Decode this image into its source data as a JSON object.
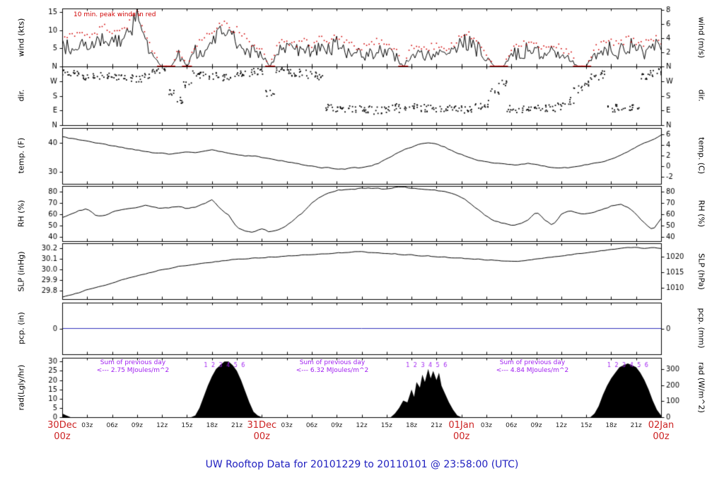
{
  "title": "UW Rooftop Data for 20101229  to  20110101 @ 23:58:00  (UTC)",
  "colors": {
    "series": "#000000",
    "red": "#d00000",
    "blue": "#3333bb",
    "purple": "#a020f0",
    "title_blue": "#2020c0",
    "day_label_red": "#cc2222",
    "hour_label": "#222222"
  },
  "x_axis": {
    "total_hours": 72,
    "tick_step_hours": 3,
    "hour_labels": [
      "03z",
      "06z",
      "09z",
      "12z",
      "15z",
      "18z",
      "21z"
    ],
    "day_labels": [
      {
        "t": 0,
        "line1": "30Dec",
        "line2": "00z"
      },
      {
        "t": 24,
        "line1": "31Dec",
        "line2": "00z"
      },
      {
        "t": 48,
        "line1": "01Jan",
        "line2": "00z"
      },
      {
        "t": 72,
        "line1": "02Jan",
        "line2": "00z"
      }
    ]
  },
  "chart_data": [
    {
      "type": "line",
      "name": "wind",
      "left_label": "wind (kts)",
      "right_label": "wind (m/s)",
      "annotation": "10 min. peak winds in red",
      "ylim": [
        0,
        16
      ],
      "x_start": 0,
      "x_step_hours": 1,
      "left_ticks": {
        "values": [
          5,
          10,
          15
        ],
        "labels": [
          "5",
          "10",
          "15"
        ]
      },
      "right_ticks": {
        "values": [
          3.89,
          7.78,
          11.66,
          15.55
        ],
        "labels": [
          "2",
          "4",
          "6",
          "8"
        ]
      },
      "series": [
        {
          "name": "10 min avg wind (kts)",
          "values": [
            6,
            5,
            7,
            5,
            6,
            8,
            7,
            6,
            9,
            14,
            6,
            2,
            0,
            0,
            3,
            0,
            4,
            5,
            7,
            9,
            8,
            7,
            5,
            4,
            3,
            0,
            4,
            5,
            4,
            5,
            4,
            6,
            5,
            6,
            5,
            4,
            3,
            4,
            5,
            4,
            3,
            0,
            3,
            4,
            3,
            4,
            3,
            4,
            7,
            6,
            5,
            2,
            0,
            0,
            3,
            4,
            5,
            4,
            3,
            4,
            3,
            2,
            0,
            0,
            3,
            4,
            5,
            4,
            6,
            5,
            4,
            6,
            5
          ]
        },
        {
          "name": "10 min peak wind (kts)",
          "values": [
            9,
            8,
            9,
            8,
            9,
            11,
            9,
            9,
            12,
            15,
            9,
            4,
            0,
            0,
            5,
            0,
            6,
            7,
            10,
            12,
            11,
            10,
            8,
            6,
            5,
            0,
            6,
            7,
            6,
            7,
            6,
            8,
            7,
            8,
            7,
            6,
            5,
            6,
            7,
            6,
            5,
            0,
            5,
            6,
            5,
            6,
            5,
            6,
            9,
            9,
            7,
            4,
            0,
            0,
            5,
            6,
            7,
            6,
            5,
            6,
            5,
            4,
            0,
            0,
            5,
            6,
            7,
            6,
            8,
            7,
            6,
            8,
            7
          ]
        }
      ]
    },
    {
      "type": "scatter",
      "name": "wind-direction",
      "left_label": "dir.",
      "right_label": "dir.",
      "ylim": [
        0,
        360
      ],
      "x_start": 0,
      "x_step_hours": 1,
      "left_ticks": {
        "values": [
          0,
          90,
          180,
          270,
          360
        ],
        "labels": [
          "N",
          "E",
          "S",
          "W",
          "N"
        ]
      },
      "right_ticks": {
        "values": [
          0,
          90,
          180,
          270,
          360
        ],
        "labels": [
          "N",
          "E",
          "S",
          "W",
          "N"
        ]
      },
      "series": [
        {
          "name": "wind direction (deg, N top=360)",
          "values": [
            320,
            315,
            310,
            300,
            305,
            310,
            300,
            295,
            290,
            285,
            300,
            320,
            340,
            200,
            150,
            250,
            310,
            305,
            300,
            295,
            300,
            310,
            320,
            330,
            335,
            200,
            330,
            320,
            315,
            320,
            310,
            300,
            110,
            95,
            90,
            100,
            105,
            95,
            90,
            100,
            110,
            95,
            120,
            105,
            100,
            95,
            100,
            105,
            95,
            100,
            110,
            130,
            200,
            260,
            100,
            95,
            105,
            110,
            100,
            105,
            115,
            150,
            220,
            260,
            300,
            310,
            100,
            105,
            110,
            120,
            300,
            320,
            330
          ]
        }
      ]
    },
    {
      "type": "line",
      "name": "temperature",
      "left_label": "temp. (F)",
      "right_label": "temp. (C)",
      "ylim": [
        26,
        45
      ],
      "x_start": 0,
      "x_step_hours": 1,
      "left_ticks": {
        "values": [
          30,
          40
        ],
        "labels": [
          "30",
          "40"
        ]
      },
      "right_ticks": {
        "values": [
          28.4,
          32,
          35.6,
          39.2,
          42.8
        ],
        "labels": [
          "-2",
          "0",
          "2",
          "4",
          "6"
        ]
      },
      "series": [
        {
          "name": "temperature (F)",
          "values": [
            42,
            41.5,
            41,
            40.5,
            40,
            39.5,
            39,
            38.5,
            38,
            37.5,
            37,
            36.5,
            36.5,
            36,
            36.5,
            37,
            36.5,
            37,
            37.5,
            37,
            36.5,
            36,
            35.5,
            35.5,
            35,
            34.5,
            34,
            33.5,
            33,
            32.5,
            32,
            31.5,
            31.5,
            31,
            31,
            31.5,
            31.5,
            32,
            33,
            34.5,
            36,
            37.5,
            38.5,
            39.5,
            40,
            39.5,
            38.5,
            37,
            36,
            35,
            34,
            33.5,
            33,
            33,
            32.5,
            32.5,
            33,
            32.5,
            32,
            31.5,
            31.5,
            31.5,
            32,
            32.5,
            33,
            33.5,
            34.5,
            35.5,
            37,
            38.5,
            40,
            41,
            42.5
          ]
        }
      ]
    },
    {
      "type": "line",
      "name": "relative-humidity",
      "left_label": "RH (%)",
      "right_label": "RH (%)",
      "ylim": [
        36,
        85
      ],
      "x_start": 0,
      "x_step_hours": 1,
      "left_ticks": {
        "values": [
          40,
          50,
          60,
          70,
          80
        ],
        "labels": [
          "40",
          "50",
          "60",
          "70",
          "80"
        ]
      },
      "right_ticks": {
        "values": [
          40,
          50,
          60,
          70,
          80
        ],
        "labels": [
          "40",
          "50",
          "60",
          "70",
          "80"
        ]
      },
      "series": [
        {
          "name": "relative humidity (%)",
          "values": [
            57,
            60,
            63,
            65,
            59,
            58,
            62,
            64,
            65,
            66,
            68,
            66,
            65,
            66,
            67,
            65,
            66,
            69,
            73,
            65,
            59,
            48,
            45,
            44,
            47,
            44,
            46,
            50,
            56,
            62,
            70,
            75,
            79,
            81,
            82,
            82,
            83,
            83,
            83,
            82,
            84,
            84,
            83,
            82,
            82,
            81,
            80,
            78,
            75,
            70,
            64,
            58,
            54,
            52,
            50,
            51,
            55,
            62,
            55,
            50,
            60,
            63,
            61,
            60,
            62,
            64,
            67,
            69,
            66,
            60,
            52,
            46,
            56
          ]
        }
      ]
    },
    {
      "type": "line",
      "name": "sea-level-pressure",
      "left_label": "SLP (inHg)",
      "right_label": "SLP (hPa)",
      "ylim": [
        29.72,
        30.25
      ],
      "x_start": 0,
      "x_step_hours": 1,
      "left_ticks": {
        "values": [
          29.8,
          29.9,
          30.0,
          30.1,
          30.2
        ],
        "labels": [
          "29.8",
          "29.9",
          "30.0",
          "30.1",
          "30.2"
        ]
      },
      "right_ticks": {
        "values": [
          29.825,
          29.973,
          30.12
        ],
        "labels": [
          "1010",
          "1015",
          "1020"
        ]
      },
      "series": [
        {
          "name": "sea level pressure (inHg)",
          "values": [
            29.74,
            29.76,
            29.78,
            29.81,
            29.83,
            29.85,
            29.87,
            29.9,
            29.92,
            29.94,
            29.96,
            29.98,
            30.0,
            30.01,
            30.03,
            30.04,
            30.05,
            30.06,
            30.07,
            30.08,
            30.09,
            30.1,
            30.1,
            30.11,
            30.11,
            30.12,
            30.12,
            30.13,
            30.13,
            30.14,
            30.14,
            30.15,
            30.15,
            30.16,
            30.16,
            30.17,
            30.17,
            30.16,
            30.16,
            30.15,
            30.15,
            30.14,
            30.14,
            30.13,
            30.13,
            30.12,
            30.12,
            30.11,
            30.11,
            30.1,
            30.1,
            30.09,
            30.09,
            30.08,
            30.08,
            30.08,
            30.09,
            30.1,
            30.11,
            30.12,
            30.13,
            30.14,
            30.15,
            30.16,
            30.17,
            30.18,
            30.19,
            30.2,
            30.21,
            30.21,
            30.2,
            30.21,
            30.2
          ]
        }
      ]
    },
    {
      "type": "line",
      "name": "precipitation",
      "left_label": "pcp. (in)",
      "right_label": "pcp. (mm)",
      "ylim": [
        -1,
        1
      ],
      "left_ticks": {
        "values": [
          0
        ],
        "labels": [
          "0"
        ]
      },
      "right_ticks": {
        "values": [
          0
        ],
        "labels": [
          "0"
        ]
      },
      "series": [
        {
          "name": "precipitation (in)",
          "x": [
            0,
            72
          ],
          "values": [
            0,
            0
          ]
        }
      ]
    },
    {
      "type": "area",
      "name": "solar-radiation",
      "left_label": "rad(Lgly/hr)",
      "right_label": "rad (W/m^2)",
      "ylim": [
        0,
        32
      ],
      "left_ticks": {
        "values": [
          0,
          5,
          10,
          15,
          20,
          25,
          30
        ],
        "labels": [
          "0",
          "5",
          "10",
          "15",
          "20",
          "25",
          "30"
        ]
      },
      "right_ticks": {
        "values": [
          0,
          8.6,
          17.2,
          25.8
        ],
        "labels": [
          "0",
          "100",
          "200",
          "300"
        ]
      },
      "points": [
        [
          0,
          2
        ],
        [
          0.5,
          1
        ],
        [
          1,
          0
        ],
        [
          15.5,
          0
        ],
        [
          16,
          1
        ],
        [
          16.5,
          5
        ],
        [
          17,
          11
        ],
        [
          17.5,
          17
        ],
        [
          18,
          22
        ],
        [
          18.5,
          26
        ],
        [
          19,
          28
        ],
        [
          19.5,
          30
        ],
        [
          20,
          30
        ],
        [
          20.5,
          28
        ],
        [
          21,
          25
        ],
        [
          21.5,
          20
        ],
        [
          22,
          14
        ],
        [
          22.5,
          8
        ],
        [
          23,
          3
        ],
        [
          23.5,
          1
        ],
        [
          24,
          0
        ],
        [
          39.5,
          0
        ],
        [
          40,
          2
        ],
        [
          40.5,
          5
        ],
        [
          41,
          9
        ],
        [
          41.5,
          8
        ],
        [
          42,
          15
        ],
        [
          42.3,
          11
        ],
        [
          42.6,
          19
        ],
        [
          43,
          16
        ],
        [
          43.3,
          23
        ],
        [
          43.6,
          19
        ],
        [
          44,
          26
        ],
        [
          44.3,
          21
        ],
        [
          44.6,
          25
        ],
        [
          45,
          20
        ],
        [
          45.3,
          24
        ],
        [
          45.6,
          17
        ],
        [
          46,
          13
        ],
        [
          46.5,
          8
        ],
        [
          47,
          4
        ],
        [
          47.5,
          1
        ],
        [
          48,
          0
        ],
        [
          63.5,
          0
        ],
        [
          64,
          2
        ],
        [
          64.5,
          6
        ],
        [
          65,
          12
        ],
        [
          65.5,
          17
        ],
        [
          66,
          21
        ],
        [
          66.5,
          24
        ],
        [
          67,
          27
        ],
        [
          67.5,
          28
        ],
        [
          68,
          29
        ],
        [
          68.5,
          28
        ],
        [
          69,
          27
        ],
        [
          69.5,
          24
        ],
        [
          70,
          20
        ],
        [
          70.5,
          15
        ],
        [
          71,
          9
        ],
        [
          71.5,
          4
        ],
        [
          72,
          1
        ]
      ],
      "digit_labels": {
        "labels": [
          "1",
          "2",
          "3",
          "4",
          "5",
          "6"
        ],
        "hump_centers_t": [
          19.5,
          43.8,
          68
        ]
      },
      "annotations": [
        {
          "t": 8.5,
          "line1": "Sum of previous day",
          "line2": "<--- 2.75 MJoules/m^2"
        },
        {
          "t": 32.5,
          "line1": "Sum of previous day",
          "line2": "<--- 6.32 MJoules/m^2"
        },
        {
          "t": 56.5,
          "line1": "Sum of previous day",
          "line2": "<--- 4.84 MJoules/m^2"
        }
      ]
    }
  ]
}
